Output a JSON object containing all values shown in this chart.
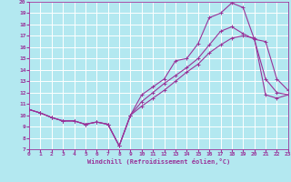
{
  "xlabel": "Windchill (Refroidissement éolien,°C)",
  "background_color": "#b3e8f0",
  "grid_color": "#ffffff",
  "line_color": "#993399",
  "xmin": 0,
  "xmax": 23,
  "ymin": 7,
  "ymax": 20,
  "yticks": [
    7,
    8,
    9,
    10,
    11,
    12,
    13,
    14,
    15,
    16,
    17,
    18,
    19,
    20
  ],
  "xticks": [
    0,
    1,
    2,
    3,
    4,
    5,
    6,
    7,
    8,
    9,
    10,
    11,
    12,
    13,
    14,
    15,
    16,
    17,
    18,
    19,
    20,
    21,
    22,
    23
  ],
  "line1_x": [
    0,
    1,
    2,
    3,
    4,
    5,
    6,
    7,
    8,
    9,
    10,
    11,
    12,
    13,
    14,
    15,
    16,
    17,
    18,
    19,
    20,
    21,
    22,
    23
  ],
  "line1_y": [
    10.5,
    10.2,
    9.8,
    9.5,
    9.5,
    9.2,
    9.4,
    9.2,
    7.3,
    10.0,
    11.8,
    12.5,
    13.2,
    14.8,
    15.0,
    16.3,
    18.6,
    19.0,
    19.9,
    19.5,
    16.7,
    13.2,
    12.0,
    11.8
  ],
  "line2_x": [
    0,
    1,
    2,
    3,
    4,
    5,
    6,
    7,
    8,
    9,
    10,
    11,
    12,
    13,
    14,
    15,
    16,
    17,
    18,
    19,
    20,
    21,
    22,
    23
  ],
  "line2_y": [
    10.5,
    10.2,
    9.8,
    9.5,
    9.5,
    9.2,
    9.4,
    9.2,
    7.3,
    10.0,
    11.2,
    12.0,
    12.8,
    13.5,
    14.2,
    15.0,
    16.2,
    17.4,
    17.8,
    17.2,
    16.7,
    16.5,
    13.2,
    12.2
  ],
  "line3_x": [
    0,
    1,
    2,
    3,
    4,
    5,
    6,
    7,
    8,
    9,
    10,
    11,
    12,
    13,
    14,
    15,
    16,
    17,
    18,
    19,
    20,
    21,
    22,
    23
  ],
  "line3_y": [
    10.5,
    10.2,
    9.8,
    9.5,
    9.5,
    9.2,
    9.4,
    9.2,
    7.3,
    10.0,
    10.8,
    11.5,
    12.2,
    13.0,
    13.8,
    14.5,
    15.5,
    16.2,
    16.8,
    17.0,
    16.8,
    11.8,
    11.5,
    11.8
  ]
}
